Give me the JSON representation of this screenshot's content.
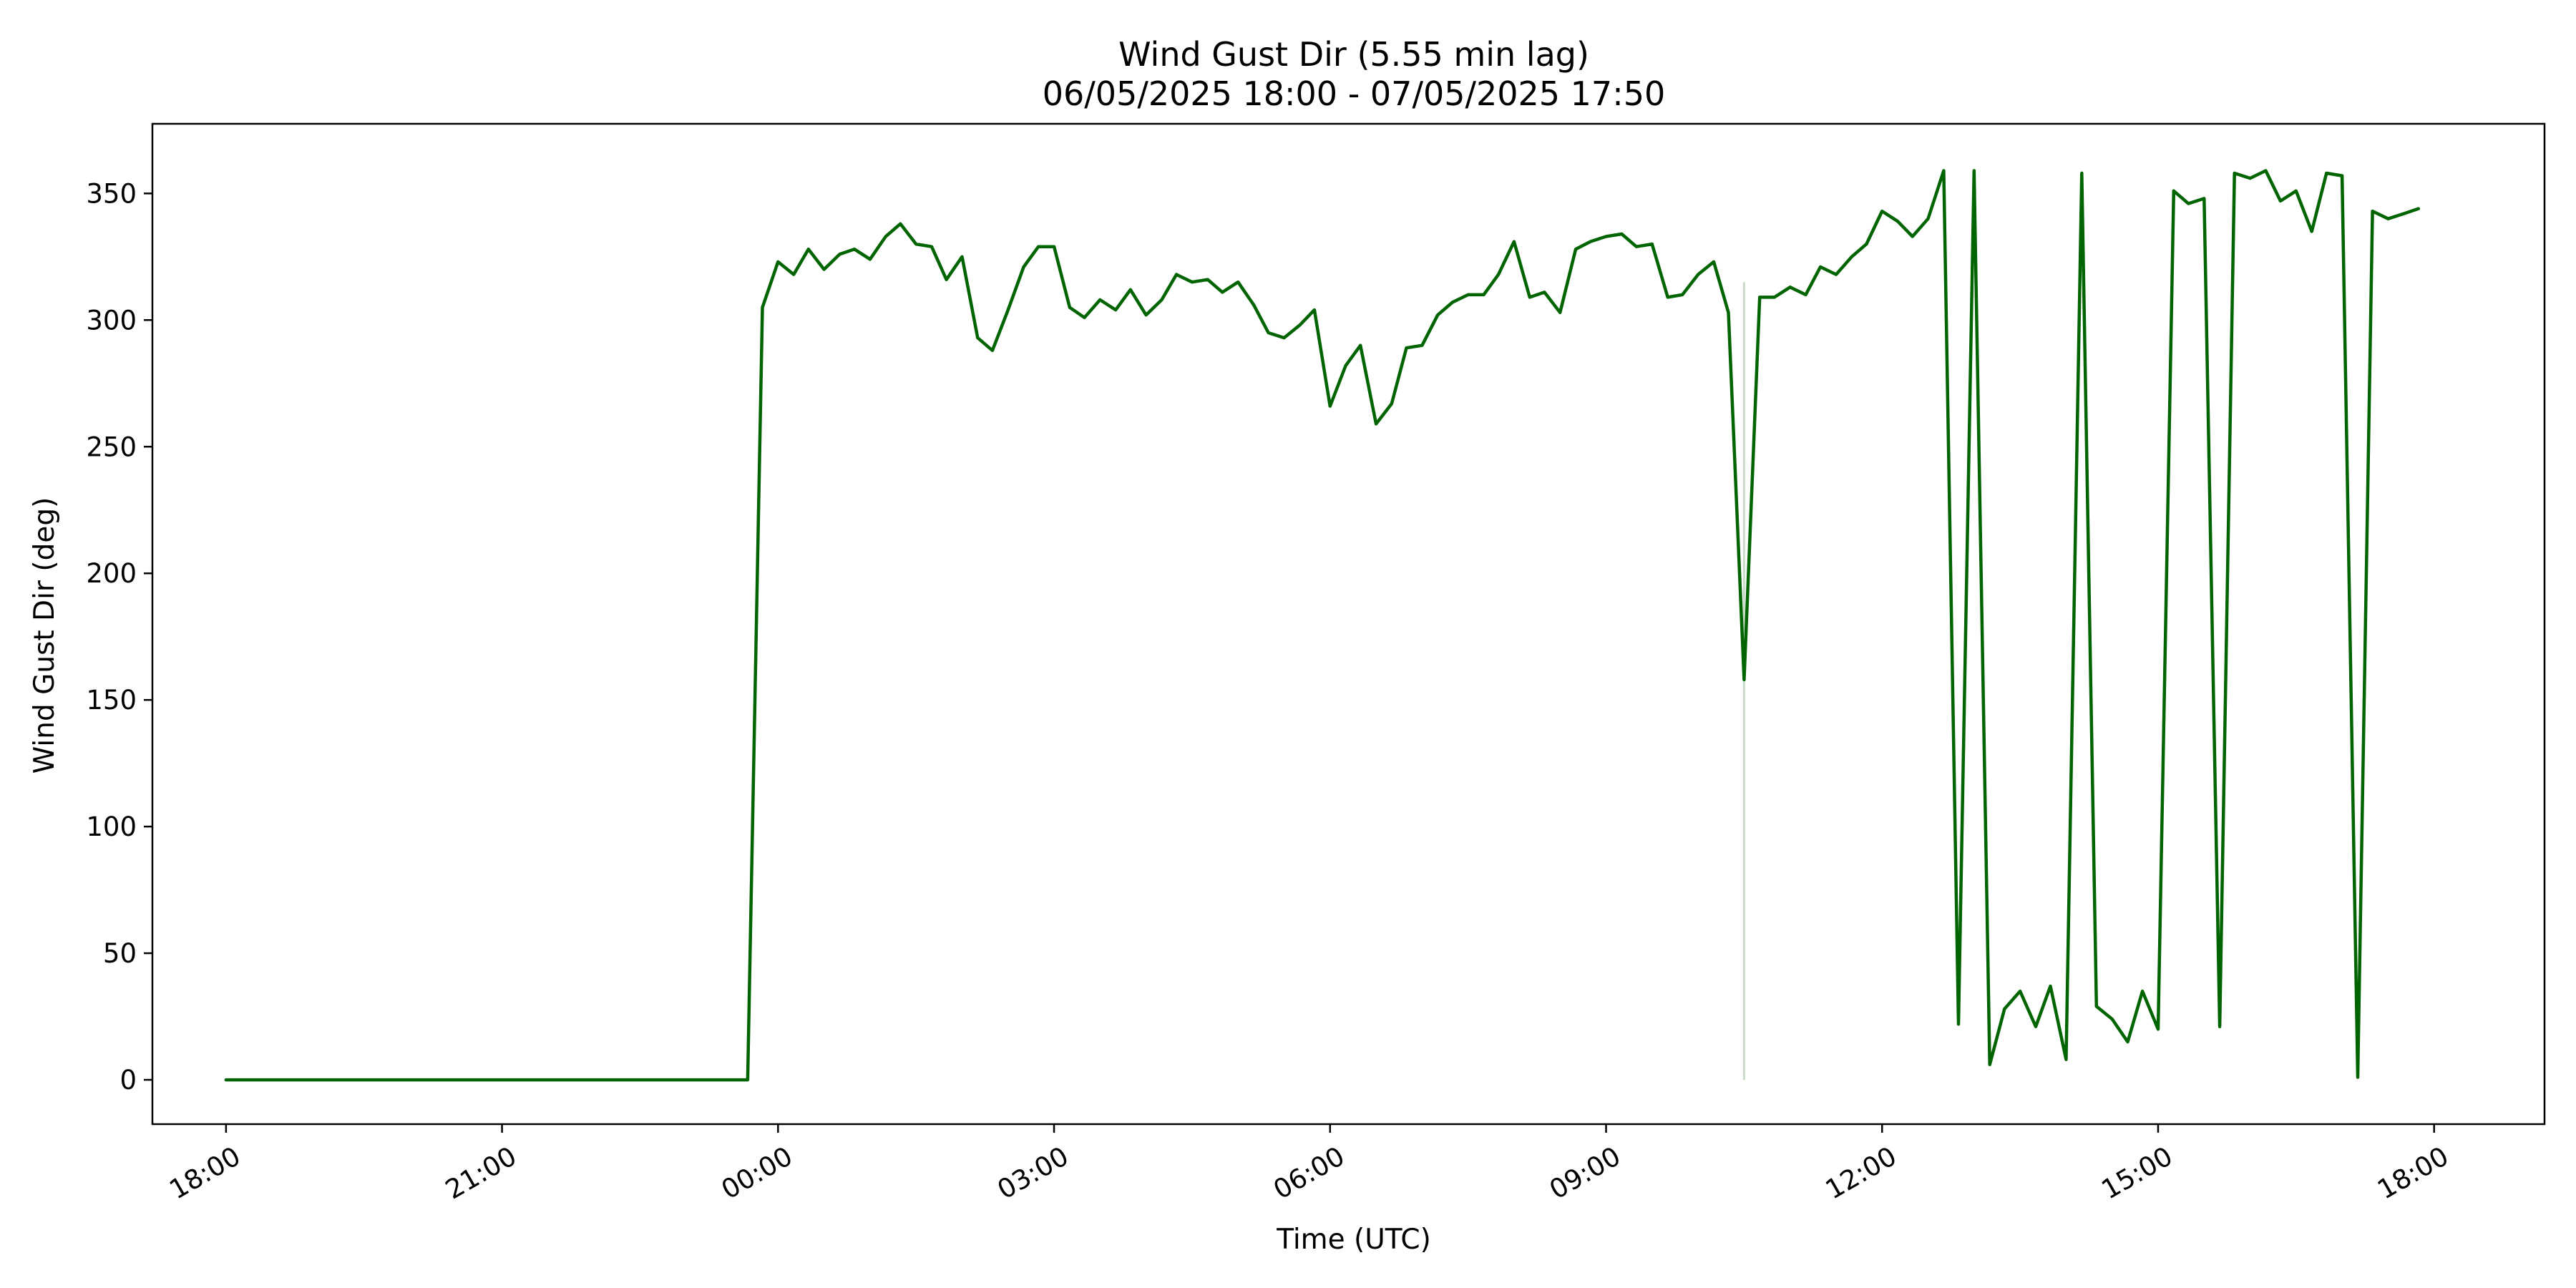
{
  "chart_data": {
    "type": "line",
    "title": "Wind Gust Dir (5.55 min lag)",
    "subtitle": "06/05/2025 18:00 - 07/05/2025 17:50",
    "xlabel": "Time (UTC)",
    "ylabel": "Wind Gust Dir (deg)",
    "x_unit": "hours since 06/05/2025 18:00 (UTC)",
    "xlim": [
      -0.8,
      25.2
    ],
    "ylim": [
      -17.5,
      377.5
    ],
    "grid": false,
    "legend": "none",
    "x_ticks": [
      {
        "value": 0,
        "label": "18:00"
      },
      {
        "value": 3,
        "label": "21:00"
      },
      {
        "value": 6,
        "label": "00:00"
      },
      {
        "value": 9,
        "label": "03:00"
      },
      {
        "value": 12,
        "label": "06:00"
      },
      {
        "value": 15,
        "label": "09:00"
      },
      {
        "value": 18,
        "label": "12:00"
      },
      {
        "value": 21,
        "label": "15:00"
      },
      {
        "value": 24,
        "label": "18:00"
      }
    ],
    "y_ticks": [
      0,
      50,
      100,
      150,
      200,
      250,
      300,
      350
    ],
    "marker_line": {
      "x": 16.5,
      "y_from": 0,
      "y_to": 315,
      "color": "#c8dcc8"
    },
    "series": [
      {
        "color": "#006400",
        "x": [
          0,
          5.67,
          5.83,
          6.0,
          6.17,
          6.33,
          6.5,
          6.67,
          6.83,
          7.0,
          7.17,
          7.33,
          7.5,
          7.67,
          7.83,
          8.0,
          8.17,
          8.33,
          8.5,
          8.67,
          8.83,
          9.0,
          9.17,
          9.33,
          9.5,
          9.67,
          9.83,
          10.0,
          10.17,
          10.33,
          10.5,
          10.67,
          10.83,
          11.0,
          11.17,
          11.33,
          11.5,
          11.67,
          11.83,
          12.0,
          12.17,
          12.33,
          12.5,
          12.67,
          12.83,
          13.0,
          13.17,
          13.33,
          13.5,
          13.67,
          13.83,
          14.0,
          14.17,
          14.33,
          14.5,
          14.67,
          14.83,
          15.0,
          15.17,
          15.33,
          15.5,
          15.67,
          15.83,
          16.0,
          16.17,
          16.33,
          16.5,
          16.67,
          16.83,
          17.0,
          17.17,
          17.33,
          17.5,
          17.67,
          17.83,
          18.0,
          18.17,
          18.33,
          18.5,
          18.67,
          18.83,
          19.0,
          19.17,
          19.33,
          19.5,
          19.67,
          19.83,
          20.0,
          20.17,
          20.33,
          20.5,
          20.67,
          20.83,
          21.0,
          21.17,
          21.33,
          21.5,
          21.67,
          21.83,
          22.0,
          22.17,
          22.33,
          22.5,
          22.67,
          22.83,
          23.0,
          23.17,
          23.33,
          23.5,
          23.67,
          23.83
        ],
        "y": [
          0,
          0,
          305,
          323,
          318,
          328,
          320,
          326,
          328,
          324,
          333,
          338,
          330,
          329,
          316,
          325,
          293,
          288,
          304,
          321,
          329,
          329,
          305,
          301,
          308,
          304,
          312,
          302,
          308,
          318,
          315,
          316,
          311,
          315,
          306,
          295,
          293,
          298,
          304,
          266,
          282,
          290,
          259,
          267,
          289,
          290,
          302,
          307,
          310,
          310,
          318,
          331,
          309,
          311,
          303,
          328,
          331,
          333,
          334,
          329,
          330,
          309,
          310,
          318,
          323,
          303,
          158,
          309,
          309,
          313,
          310,
          321,
          318,
          325,
          330,
          343,
          339,
          333,
          340,
          359,
          22,
          359,
          6,
          28,
          35,
          21,
          37,
          8,
          358,
          29,
          24,
          15,
          35,
          20,
          351,
          346,
          348,
          21,
          358,
          356,
          359,
          347,
          351,
          335,
          358,
          357,
          1,
          343,
          340,
          342,
          344
        ]
      }
    ]
  }
}
